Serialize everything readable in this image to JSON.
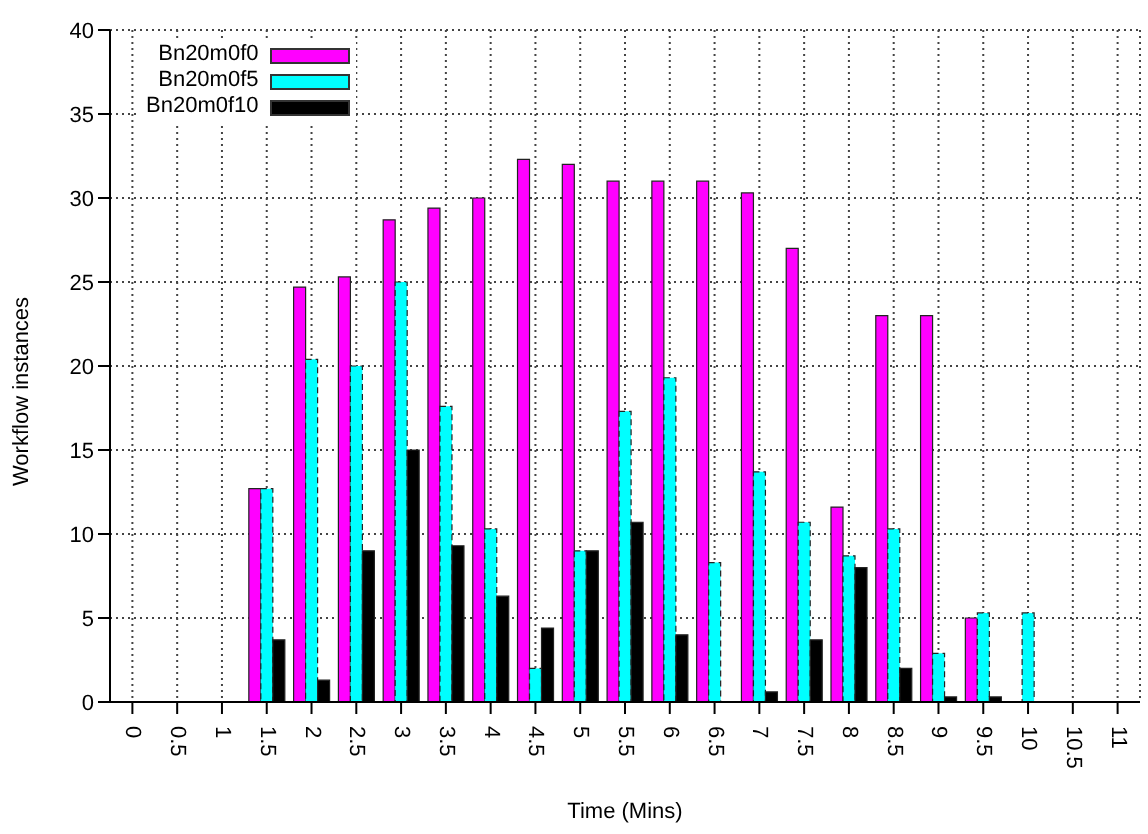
{
  "chart_data": {
    "type": "bar",
    "xlabel": "Time (Mins)",
    "ylabel": "Workflow instances",
    "categories": [
      "0",
      "0.5",
      "1",
      "1.5",
      "2",
      "2.5",
      "3",
      "3.5",
      "4",
      "4.5",
      "5",
      "5.5",
      "6",
      "6.5",
      "7",
      "7.5",
      "8",
      "8.5",
      "9",
      "9.5",
      "10",
      "10.5",
      "11"
    ],
    "series": [
      {
        "name": "Bn20m0f0",
        "color": "#ff00ff",
        "values": [
          0,
          0,
          0,
          12.7,
          24.7,
          25.3,
          28.7,
          29.4,
          30,
          32.3,
          32,
          31,
          31,
          31,
          30.3,
          27,
          11.6,
          23,
          23,
          5,
          0,
          0,
          0
        ]
      },
      {
        "name": "Bn20m0f5",
        "color": "#00ffff",
        "values": [
          0,
          0,
          0,
          12.7,
          20.4,
          20,
          25,
          17.6,
          10.3,
          2,
          9,
          17.3,
          19.3,
          8.3,
          13.7,
          10.7,
          8.7,
          10.3,
          2.9,
          5.3,
          5.3,
          0,
          0
        ]
      },
      {
        "name": "Bn20m0f10",
        "color": "#000000",
        "values": [
          0,
          0,
          0,
          3.7,
          1.3,
          9,
          15,
          9.3,
          6.3,
          4.4,
          9,
          10.7,
          4,
          0,
          0.6,
          3.7,
          8,
          2,
          0.3,
          0.3,
          0,
          0,
          0
        ]
      }
    ],
    "ylim": [
      0,
      40
    ],
    "yticks": [
      0,
      5,
      10,
      15,
      20,
      25,
      30,
      35,
      40
    ],
    "grid": true,
    "legend": "top left"
  }
}
